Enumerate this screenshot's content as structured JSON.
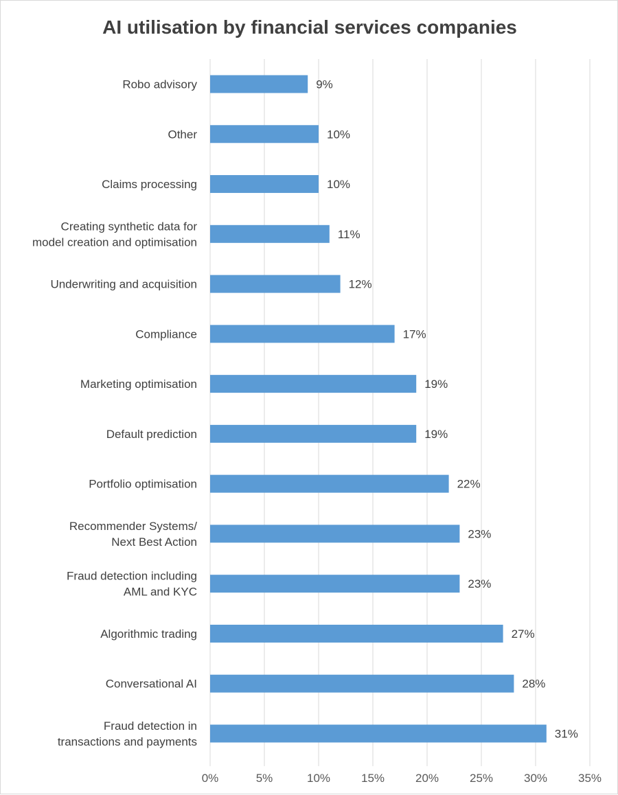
{
  "chart_data": {
    "type": "bar",
    "orientation": "horizontal",
    "title": "AI utilisation by financial services companies",
    "categories": [
      "Robo advisory",
      "Other",
      "Claims processing",
      "Creating synthetic data for\nmodel creation and optimisation",
      "Underwriting and acquisition",
      "Compliance",
      "Marketing optimisation",
      "Default prediction",
      "Portfolio optimisation",
      "Recommender Systems/\nNext Best Action",
      "Fraud detection including\nAML and KYC",
      "Algorithmic trading",
      "Conversational AI",
      "Fraud detection in\ntransactions and payments"
    ],
    "values": [
      9,
      10,
      10,
      11,
      12,
      17,
      19,
      19,
      22,
      23,
      23,
      27,
      28,
      31
    ],
    "data_labels": [
      "9%",
      "10%",
      "10%",
      "11%",
      "12%",
      "17%",
      "19%",
      "19%",
      "22%",
      "23%",
      "23%",
      "27%",
      "28%",
      "31%"
    ],
    "xlim": [
      0,
      35
    ],
    "x_ticks": [
      "0%",
      "5%",
      "10%",
      "15%",
      "20%",
      "25%",
      "30%",
      "35%"
    ],
    "grid": true,
    "legend": "none",
    "bar_color": "#5b9bd5"
  }
}
